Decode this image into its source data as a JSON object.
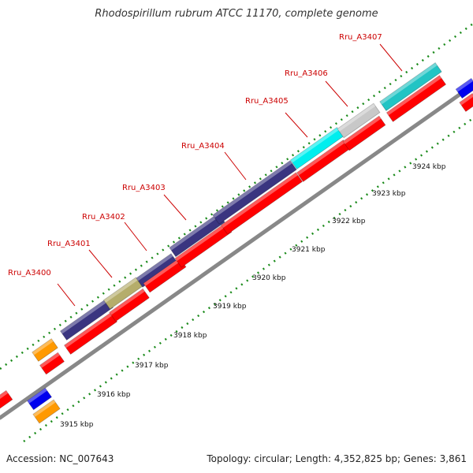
{
  "title": "Rhodospirillum rubrum ATCC 11170, complete genome",
  "footer": {
    "accession": "Accession: NC_007643",
    "summary": "Topology: circular; Length: 4,352,825 bp; Genes: 3,861"
  },
  "colors": {
    "backbone": "#888888",
    "tick": "#1a8a1a",
    "cds": "#ff0000",
    "orange": "#ff9900",
    "blue": "#0000ee",
    "purple": "#3a3580",
    "khaki": "#b5ad6b",
    "cyan": "#00eeee",
    "gray": "#c8c8c8",
    "teal": "#22c4c4",
    "label": "#cc0000"
  },
  "scale": {
    "unit": "kbp",
    "ticks": [
      {
        "value": 3915,
        "label": "3915 kbp"
      },
      {
        "value": 3916,
        "label": "3916 kbp"
      },
      {
        "value": 3917,
        "label": "3917 kbp"
      },
      {
        "value": 3918,
        "label": "3918 kbp"
      },
      {
        "value": 3919,
        "label": "3919 kbp"
      },
      {
        "value": 3920,
        "label": "3920 kbp"
      },
      {
        "value": 3921,
        "label": "3921 kbp"
      },
      {
        "value": 3922,
        "label": "3922 kbp"
      },
      {
        "value": 3923,
        "label": "3923 kbp"
      },
      {
        "value": 3924,
        "label": "3924 kbp"
      }
    ]
  },
  "labeled_genes": [
    {
      "name": "Rru_A3400",
      "color": "#3a3580"
    },
    {
      "name": "Rru_A3401",
      "color": "#b5ad6b"
    },
    {
      "name": "Rru_A3402",
      "color": "#3a3580"
    },
    {
      "name": "Rru_A3403",
      "color": "#3a3580"
    },
    {
      "name": "Rru_A3404",
      "color": "#3a3580"
    },
    {
      "name": "Rru_A3405",
      "color": "#00eeee"
    },
    {
      "name": "Rru_A3406",
      "color": "#c8c8c8"
    },
    {
      "name": "Rru_A3407",
      "color": "#22c4c4"
    }
  ]
}
